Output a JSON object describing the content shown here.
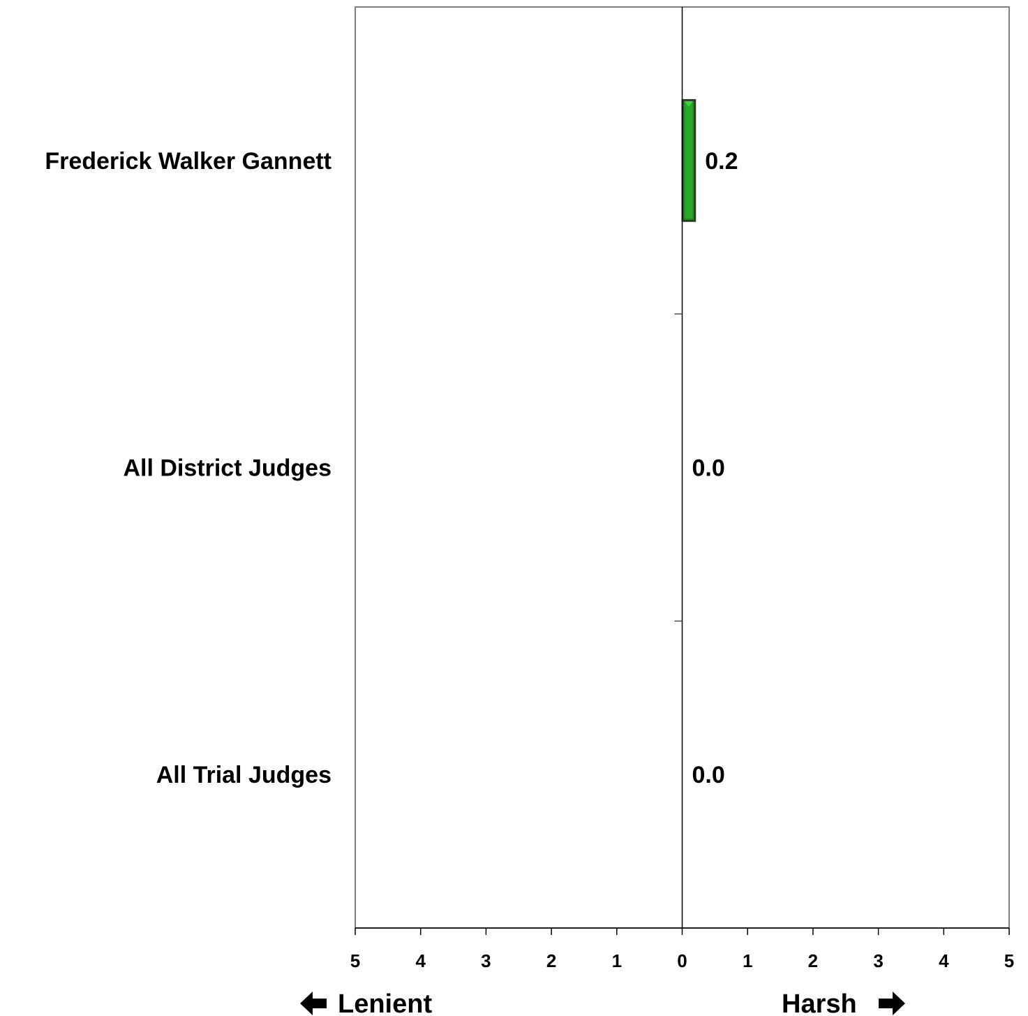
{
  "chart_data": {
    "type": "bar",
    "orientation": "horizontal",
    "categories": [
      "Frederick Walker Gannett",
      "All District Judges",
      "All Trial Judges"
    ],
    "values": [
      0.2,
      0.0,
      0.0
    ],
    "value_labels": [
      "0.2",
      "0.0",
      "0.0"
    ],
    "xlim": [
      -5,
      5
    ],
    "x_ticks": [
      -5,
      -4,
      -3,
      -2,
      -1,
      0,
      1,
      2,
      3,
      4,
      5
    ],
    "x_tick_labels": [
      "5",
      "4",
      "3",
      "2",
      "1",
      "0",
      "1",
      "2",
      "3",
      "4",
      "5"
    ],
    "title": "",
    "xlabel": "",
    "ylabel": "",
    "grid": false,
    "legend": "none",
    "bar_color": "#1f8f1f",
    "bar_edge_color": "#2b3a2b",
    "bar_highlight_color": "#3cd43c"
  },
  "direction_labels": {
    "left": "Lenient",
    "right": "Harsh"
  }
}
